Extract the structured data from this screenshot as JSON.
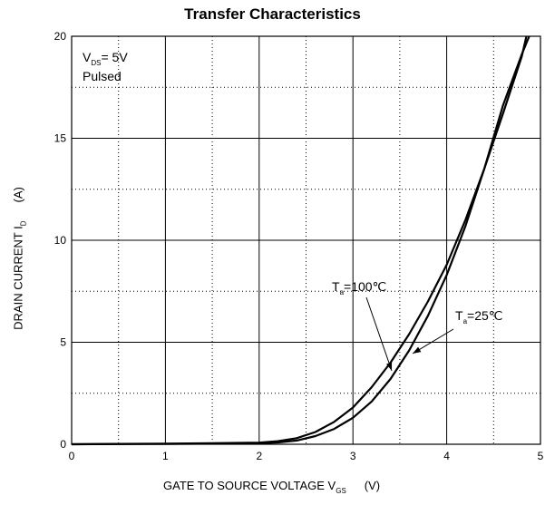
{
  "chart_data": {
    "type": "line",
    "title": "Transfer Characteristics",
    "xlabel": {
      "main": "GATE TO SOURCE VOLTAGE   V",
      "sub": "GS",
      "unit": "(V)"
    },
    "ylabel": {
      "main": "DRAIN CURRENT   I",
      "sub": "D",
      "unit": "(A)"
    },
    "xlim": [
      0,
      5
    ],
    "ylim": [
      0,
      20
    ],
    "xticks": [
      "0",
      "1",
      "2",
      "3",
      "4",
      "5"
    ],
    "yticks": [
      "0",
      "5",
      "10",
      "15",
      "20"
    ],
    "grid": {
      "major_solid": true,
      "minor_dotted": true
    },
    "conditions": {
      "line1_main": "V",
      "line1_sub": "DS",
      "line1_tail": "= 5V",
      "line2": "Pulsed"
    },
    "series": [
      {
        "name": "T_a=100℃",
        "label_main": "T",
        "label_sub": "a",
        "label_tail": "=100℃",
        "x": [
          0,
          0.5,
          1.0,
          1.5,
          2.0,
          2.2,
          2.4,
          2.6,
          2.8,
          3.0,
          3.2,
          3.4,
          3.6,
          3.8,
          4.0,
          4.2,
          4.4,
          4.6,
          4.8,
          4.85
        ],
        "y": [
          0,
          0.02,
          0.03,
          0.05,
          0.08,
          0.15,
          0.3,
          0.6,
          1.1,
          1.8,
          2.8,
          4.0,
          5.4,
          7.0,
          8.8,
          11.0,
          13.5,
          16.2,
          19.0,
          20.0
        ]
      },
      {
        "name": "T_a=25℃",
        "label_main": "T",
        "label_sub": "a",
        "label_tail": "=25℃",
        "x": [
          0,
          0.5,
          1.0,
          1.5,
          2.0,
          2.2,
          2.4,
          2.6,
          2.8,
          3.0,
          3.2,
          3.4,
          3.6,
          3.8,
          4.0,
          4.2,
          4.4,
          4.6,
          4.8,
          4.88
        ],
        "y": [
          0,
          0.01,
          0.02,
          0.03,
          0.05,
          0.09,
          0.18,
          0.4,
          0.75,
          1.3,
          2.1,
          3.2,
          4.6,
          6.3,
          8.3,
          10.7,
          13.5,
          16.6,
          19.1,
          20.0
        ]
      }
    ]
  }
}
